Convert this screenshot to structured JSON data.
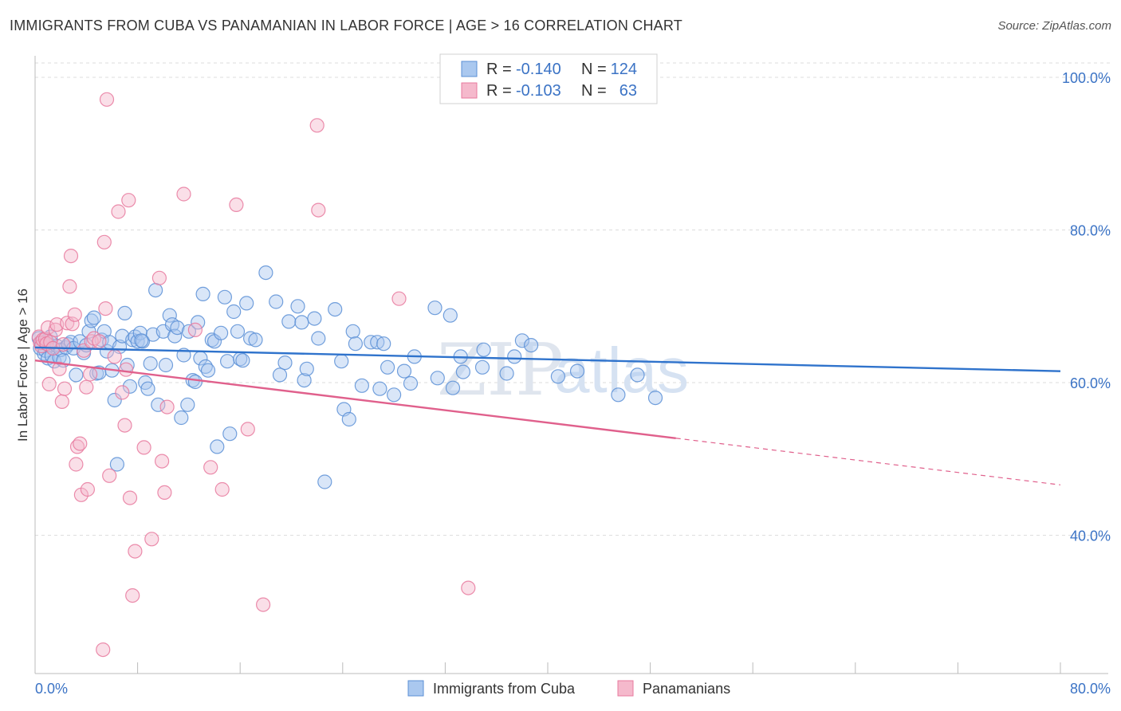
{
  "header": {
    "title": "IMMIGRANTS FROM CUBA VS PANAMANIAN IN LABOR FORCE | AGE > 16 CORRELATION CHART",
    "source": "Source: ZipAtlas.com"
  },
  "watermark": {
    "part1": "ZIP",
    "part2": "atlas"
  },
  "chart_data": {
    "type": "scatter",
    "title": "IMMIGRANTS FROM CUBA VS PANAMANIAN IN LABOR FORCE | AGE > 16 CORRELATION CHART",
    "ylabel": "In Labor Force | Age > 16",
    "xlabel": "",
    "xlim": [
      0,
      80
    ],
    "ylim": [
      20,
      104
    ],
    "x_tick_labels": [
      "0.0%",
      "80.0%"
    ],
    "y_ticks": [
      40,
      60,
      80,
      100
    ],
    "y_tick_labels": [
      "40.0%",
      "60.0%",
      "80.0%",
      "100.0%"
    ],
    "grid": "horizontal dashed",
    "legend_placement": "top-center",
    "legend_stats": [
      {
        "r_label": "R =",
        "r": "-0.140",
        "n_label": "N =",
        "n": "124"
      },
      {
        "r_label": "R =",
        "r": "-0.103",
        "n_label": "N =",
        "n": "63"
      }
    ],
    "series": [
      {
        "name": "Immigrants from Cuba",
        "color": "#5b8fd6",
        "fill": "#aac8ef",
        "trend": {
          "x0": 0,
          "y0": 64.6,
          "x1": 80,
          "y1": 61.5,
          "dashed_from": null
        },
        "points": [
          [
            0.3,
            65.8
          ],
          [
            0.4,
            64.5
          ],
          [
            0.5,
            65.2
          ],
          [
            0.7,
            63.8
          ],
          [
            0.8,
            64.2
          ],
          [
            0.9,
            65.5
          ],
          [
            1.0,
            63.2
          ],
          [
            1.1,
            64.9
          ],
          [
            1.2,
            66.0
          ],
          [
            1.3,
            63.5
          ],
          [
            1.5,
            62.8
          ],
          [
            1.7,
            64.8
          ],
          [
            1.9,
            63.3
          ],
          [
            2.0,
            64.3
          ],
          [
            2.2,
            62.9
          ],
          [
            2.4,
            64.6
          ],
          [
            2.6,
            65.0
          ],
          [
            2.8,
            65.3
          ],
          [
            3.0,
            64.5
          ],
          [
            3.2,
            61.0
          ],
          [
            3.5,
            65.4
          ],
          [
            3.8,
            63.9
          ],
          [
            4.0,
            64.9
          ],
          [
            4.2,
            66.7
          ],
          [
            4.4,
            68.1
          ],
          [
            4.6,
            68.5
          ],
          [
            4.8,
            61.2
          ],
          [
            5.0,
            61.3
          ],
          [
            5.2,
            65.6
          ],
          [
            5.4,
            66.7
          ],
          [
            5.6,
            64.1
          ],
          [
            5.8,
            65.3
          ],
          [
            6.0,
            61.6
          ],
          [
            6.2,
            57.7
          ],
          [
            6.4,
            49.3
          ],
          [
            6.6,
            64.7
          ],
          [
            6.8,
            66.1
          ],
          [
            7.0,
            69.1
          ],
          [
            7.2,
            62.3
          ],
          [
            7.4,
            59.5
          ],
          [
            7.6,
            65.6
          ],
          [
            7.8,
            66.0
          ],
          [
            8.0,
            65.4
          ],
          [
            8.2,
            66.5
          ],
          [
            8.4,
            65.4
          ],
          [
            8.6,
            60.0
          ],
          [
            8.8,
            59.2
          ],
          [
            9.0,
            62.5
          ],
          [
            9.2,
            66.3
          ],
          [
            9.4,
            72.1
          ],
          [
            9.6,
            57.1
          ],
          [
            10.0,
            66.7
          ],
          [
            10.2,
            62.3
          ],
          [
            10.5,
            68.8
          ],
          [
            10.7,
            67.6
          ],
          [
            10.9,
            66.1
          ],
          [
            11.1,
            67.2
          ],
          [
            11.4,
            55.4
          ],
          [
            11.6,
            63.6
          ],
          [
            11.9,
            57.1
          ],
          [
            12.0,
            66.7
          ],
          [
            12.3,
            60.3
          ],
          [
            12.5,
            60.1
          ],
          [
            12.7,
            67.9
          ],
          [
            12.9,
            63.2
          ],
          [
            13.1,
            71.6
          ],
          [
            13.3,
            62.1
          ],
          [
            13.5,
            61.6
          ],
          [
            13.8,
            65.6
          ],
          [
            14.0,
            65.4
          ],
          [
            14.2,
            51.6
          ],
          [
            14.5,
            66.5
          ],
          [
            14.8,
            71.2
          ],
          [
            15.0,
            62.8
          ],
          [
            15.2,
            53.3
          ],
          [
            15.5,
            69.3
          ],
          [
            15.8,
            66.7
          ],
          [
            16.0,
            63.1
          ],
          [
            16.2,
            62.9
          ],
          [
            16.5,
            70.4
          ],
          [
            16.8,
            65.8
          ],
          [
            17.2,
            65.6
          ],
          [
            18.0,
            74.4
          ],
          [
            18.8,
            70.6
          ],
          [
            19.1,
            61.0
          ],
          [
            19.5,
            62.6
          ],
          [
            19.8,
            68.0
          ],
          [
            20.5,
            70.0
          ],
          [
            20.8,
            67.9
          ],
          [
            21.0,
            60.3
          ],
          [
            21.2,
            61.8
          ],
          [
            21.8,
            68.4
          ],
          [
            22.1,
            65.8
          ],
          [
            22.6,
            47.0
          ],
          [
            23.4,
            69.6
          ],
          [
            23.9,
            62.8
          ],
          [
            24.1,
            56.5
          ],
          [
            24.5,
            55.2
          ],
          [
            24.8,
            66.7
          ],
          [
            25.0,
            65.1
          ],
          [
            25.5,
            59.6
          ],
          [
            26.2,
            65.3
          ],
          [
            26.7,
            65.3
          ],
          [
            26.9,
            59.2
          ],
          [
            27.2,
            65.1
          ],
          [
            27.5,
            62.0
          ],
          [
            28.0,
            58.4
          ],
          [
            28.8,
            61.5
          ],
          [
            29.3,
            59.9
          ],
          [
            29.6,
            63.4
          ],
          [
            31.2,
            69.8
          ],
          [
            31.4,
            60.6
          ],
          [
            32.4,
            68.8
          ],
          [
            32.6,
            59.3
          ],
          [
            33.2,
            63.4
          ],
          [
            33.4,
            61.4
          ],
          [
            34.9,
            62.0
          ],
          [
            35.0,
            64.3
          ],
          [
            36.8,
            61.2
          ],
          [
            37.4,
            63.4
          ],
          [
            38.0,
            65.5
          ],
          [
            38.7,
            64.9
          ],
          [
            40.8,
            60.8
          ],
          [
            42.3,
            61.5
          ],
          [
            45.5,
            58.4
          ],
          [
            47.0,
            61.0
          ],
          [
            48.4,
            58.0
          ],
          [
            8.3,
            65.5
          ]
        ]
      },
      {
        "name": "Panamanians",
        "color": "#e8799e",
        "fill": "#f5b9cc",
        "trend": {
          "x0": 0,
          "y0": 62.9,
          "x1": 80,
          "y1": 46.6,
          "dashed_from": 50
        },
        "points": [
          [
            0.3,
            66.0
          ],
          [
            0.4,
            65.2
          ],
          [
            0.5,
            64.8
          ],
          [
            0.6,
            65.6
          ],
          [
            0.8,
            65.7
          ],
          [
            0.9,
            65.1
          ],
          [
            1.0,
            67.2
          ],
          [
            1.1,
            59.8
          ],
          [
            1.2,
            65.3
          ],
          [
            1.4,
            64.5
          ],
          [
            1.6,
            66.9
          ],
          [
            1.7,
            67.6
          ],
          [
            1.9,
            61.8
          ],
          [
            2.1,
            57.5
          ],
          [
            2.2,
            65.0
          ],
          [
            2.3,
            59.2
          ],
          [
            2.5,
            67.8
          ],
          [
            2.7,
            72.6
          ],
          [
            2.8,
            76.6
          ],
          [
            2.9,
            67.7
          ],
          [
            3.1,
            68.9
          ],
          [
            3.2,
            49.3
          ],
          [
            3.3,
            51.6
          ],
          [
            3.5,
            52.0
          ],
          [
            3.6,
            45.3
          ],
          [
            3.8,
            64.2
          ],
          [
            4.0,
            59.4
          ],
          [
            4.1,
            46.0
          ],
          [
            4.3,
            61.1
          ],
          [
            4.4,
            65.4
          ],
          [
            4.6,
            65.8
          ],
          [
            5.0,
            65.4
          ],
          [
            5.4,
            78.4
          ],
          [
            5.5,
            69.7
          ],
          [
            5.6,
            97.1
          ],
          [
            5.8,
            47.8
          ],
          [
            6.2,
            63.4
          ],
          [
            6.5,
            82.4
          ],
          [
            6.8,
            58.7
          ],
          [
            7.0,
            54.4
          ],
          [
            7.1,
            61.7
          ],
          [
            7.3,
            83.9
          ],
          [
            7.4,
            44.9
          ],
          [
            7.6,
            32.1
          ],
          [
            7.8,
            37.9
          ],
          [
            8.5,
            51.5
          ],
          [
            9.1,
            39.5
          ],
          [
            9.7,
            73.7
          ],
          [
            9.9,
            49.7
          ],
          [
            10.1,
            45.6
          ],
          [
            10.3,
            56.8
          ],
          [
            11.6,
            84.7
          ],
          [
            12.5,
            66.9
          ],
          [
            13.7,
            48.9
          ],
          [
            14.6,
            46.0
          ],
          [
            15.7,
            83.3
          ],
          [
            16.6,
            53.9
          ],
          [
            17.8,
            30.9
          ],
          [
            22.0,
            93.7
          ],
          [
            22.1,
            82.6
          ],
          [
            28.4,
            71.0
          ],
          [
            33.8,
            33.1
          ],
          [
            5.3,
            25.0
          ]
        ]
      }
    ]
  },
  "legend": {
    "items": [
      {
        "label": "Immigrants from Cuba"
      },
      {
        "label": "Panamanians"
      }
    ]
  }
}
